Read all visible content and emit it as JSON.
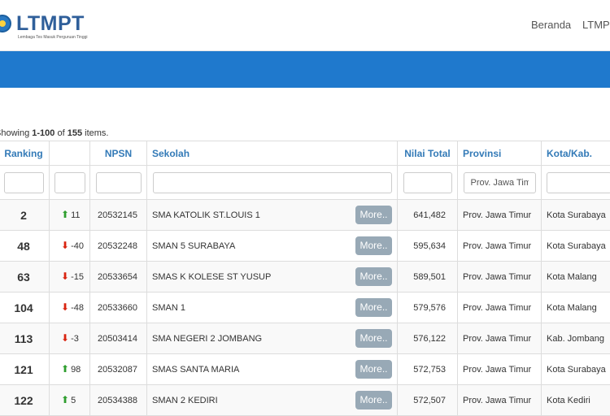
{
  "header": {
    "logo_text": "LTMPT",
    "logo_tagline": "Lembaga Tes Masuk Perguruan Tinggi",
    "nav": [
      "Beranda",
      "LTMPT"
    ]
  },
  "summary": {
    "prefix": "Showing ",
    "range": "1-100",
    "middle": " of ",
    "total": "155",
    "suffix": " items."
  },
  "table": {
    "columns": [
      "Ranking",
      "",
      "NPSN",
      "Sekolah",
      "Nilai Total",
      "Provinsi",
      "Kota/Kab."
    ],
    "filters": {
      "provinsi": "Prov. Jawa Timur"
    },
    "more_label": "More..",
    "rows": [
      {
        "rank": "2",
        "dir": "up",
        "change": "11",
        "npsn": "20532145",
        "school": "SMA KATOLIK ST.LOUIS 1",
        "score": "641,482",
        "prov": "Prov. Jawa Timur",
        "kota": "Kota Surabaya"
      },
      {
        "rank": "48",
        "dir": "down",
        "change": "-40",
        "npsn": "20532248",
        "school": "SMAN 5 SURABAYA",
        "score": "595,634",
        "prov": "Prov. Jawa Timur",
        "kota": "Kota Surabaya"
      },
      {
        "rank": "63",
        "dir": "down",
        "change": "-15",
        "npsn": "20533654",
        "school": "SMAS K KOLESE ST YUSUP",
        "score": "589,501",
        "prov": "Prov. Jawa Timur",
        "kota": "Kota Malang"
      },
      {
        "rank": "104",
        "dir": "down",
        "change": "-48",
        "npsn": "20533660",
        "school": "SMAN 1",
        "score": "579,576",
        "prov": "Prov. Jawa Timur",
        "kota": "Kota Malang"
      },
      {
        "rank": "113",
        "dir": "down",
        "change": "-3",
        "npsn": "20503414",
        "school": "SMA NEGERI 2 JOMBANG",
        "score": "576,122",
        "prov": "Prov. Jawa Timur",
        "kota": "Kab. Jombang"
      },
      {
        "rank": "121",
        "dir": "up",
        "change": "98",
        "npsn": "20532087",
        "school": "SMAS SANTA MARIA",
        "score": "572,753",
        "prov": "Prov. Jawa Timur",
        "kota": "Kota Surabaya"
      },
      {
        "rank": "122",
        "dir": "up",
        "change": "5",
        "npsn": "20534388",
        "school": "SMAN 2 KEDIRI",
        "score": "572,507",
        "prov": "Prov. Jawa Timur",
        "kota": "Kota Kediri"
      }
    ]
  },
  "colors": {
    "banner": "#1f79cd",
    "header_link": "#337ab7",
    "up_arrow": "#2f9e2f",
    "down_arrow": "#d9230f",
    "more_button": "#98a9b6"
  }
}
